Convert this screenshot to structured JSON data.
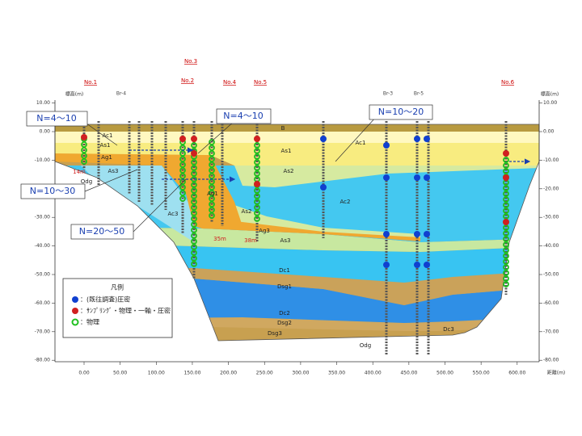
{
  "axes": {
    "left_title": "標高(m)",
    "right_title": "標高(m)",
    "x_title": "距離(m)",
    "y_ticks": [
      "10.00",
      "0.00",
      "-10.00",
      "-20.00",
      "-30.00",
      "-40.00",
      "-50.00",
      "-60.00",
      "-70.00",
      "-80.00"
    ],
    "x_ticks": [
      "0.00",
      "50.00",
      "100.00",
      "150.00",
      "200.00",
      "250.00",
      "300.00",
      "350.00",
      "400.00",
      "450.00",
      "500.00",
      "550.00",
      "600.00"
    ]
  },
  "boreholes": [
    "No.1",
    "No.2",
    "No.3",
    "No.4",
    "No.5",
    "No.6",
    "Br-4",
    "Br-3",
    "Br-5"
  ],
  "layers": [
    "B",
    "Ac1",
    "As1",
    "Ag1",
    "As3",
    "Odg",
    "Ac1",
    "As1",
    "As2",
    "Ac2",
    "Ag1",
    "Ac3",
    "As2",
    "Ag3",
    "As3",
    "Dc1",
    "Dsg1",
    "Dc2",
    "Dsg2",
    "Dsg3",
    "Odg",
    "Dc3"
  ],
  "depth_notes": [
    "14m",
    "35m",
    "38m"
  ],
  "callouts": [
    "N=4～10",
    "N=4～10",
    "N=10～20",
    "N=10～30",
    "N=20～50"
  ],
  "legend": {
    "title": "凡例",
    "items": [
      "：(既往調査)圧密",
      "：ｻﾝﾌﾟﾘﾝｸﾞ・物理・一軸・圧密",
      "：物理"
    ]
  }
}
